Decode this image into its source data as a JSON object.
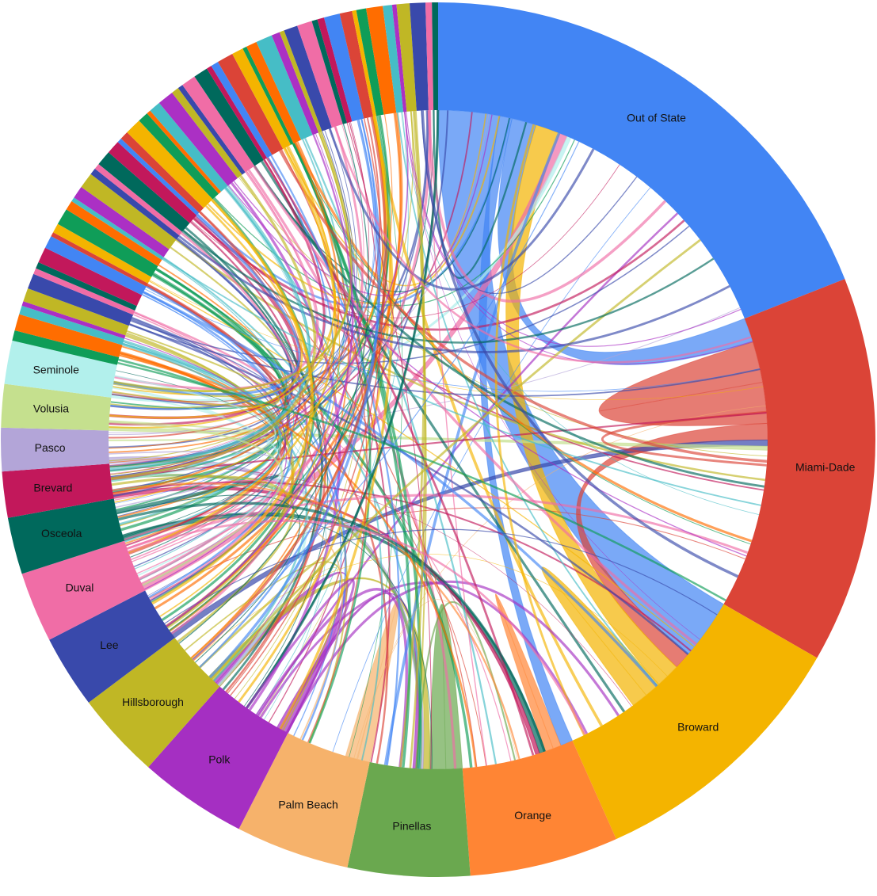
{
  "chart_data": {
    "type": "chord",
    "title": "",
    "segments": [
      {
        "name": "Out of State",
        "color": "#4285f4",
        "share": 0.19
      },
      {
        "name": "Miami-Dade",
        "color": "#db4437",
        "share": 0.143
      },
      {
        "name": "Broward",
        "color": "#f4b400",
        "share": 0.1
      },
      {
        "name": "Orange",
        "color": "#ff8534",
        "share": 0.055
      },
      {
        "name": "Pinellas",
        "color": "#6aa84f",
        "share": 0.045
      },
      {
        "name": "Palm Beach",
        "color": "#f6b26b",
        "share": 0.042
      },
      {
        "name": "Polk",
        "color": "#a52fc2",
        "share": 0.04
      },
      {
        "name": "Hillsborough",
        "color": "#c0b725",
        "share": 0.032
      },
      {
        "name": "Lee",
        "color": "#3949ab",
        "share": 0.027
      },
      {
        "name": "Duval",
        "color": "#f06da6",
        "share": 0.026
      },
      {
        "name": "Osceola",
        "color": "#00695c",
        "share": 0.021
      },
      {
        "name": "Brevard",
        "color": "#c2185b",
        "share": 0.017
      },
      {
        "name": "Pasco",
        "color": "#b3a5d8",
        "share": 0.016
      },
      {
        "name": "Volusia",
        "color": "#c5e08e",
        "share": 0.016
      },
      {
        "name": "Seminole",
        "color": "#b2f0ec",
        "share": 0.016
      }
    ],
    "small_segment_count": 56,
    "small_segment_share": 0.214,
    "small_segment_palette": [
      "#0f9d58",
      "#ff6d00",
      "#46bdc6",
      "#ab30c4",
      "#c0b725",
      "#3949ab",
      "#f06da6",
      "#00695c",
      "#c2185b",
      "#4285f4",
      "#db4437",
      "#f4b400"
    ],
    "flows": [
      {
        "from": "Out of State",
        "to": "Broward",
        "value": 0.03
      },
      {
        "from": "Out of State",
        "to": "Orange",
        "value": 0.006
      },
      {
        "from": "Out of State",
        "to": "Miami-Dade",
        "value": 0.012
      },
      {
        "from": "Miami-Dade",
        "to": "Miami-Dade",
        "value": 0.02
      },
      {
        "from": "Miami-Dade",
        "to": "Broward",
        "value": 0.008
      },
      {
        "from": "Broward",
        "to": "Out of State",
        "value": 0.012
      },
      {
        "from": "Broward",
        "to": "Broward",
        "value": 0.008
      },
      {
        "from": "Pinellas",
        "to": "Pinellas",
        "value": 0.008
      },
      {
        "from": "Palm Beach",
        "to": "Palm Beach",
        "value": 0.006
      },
      {
        "from": "Orange",
        "to": "Orange",
        "value": 0.004
      },
      {
        "from": "Polk",
        "to": "Hillsborough",
        "value": 0.004
      },
      {
        "from": "Duval",
        "to": "Out of State",
        "value": 0.004
      },
      {
        "from": "Lee",
        "to": "Miami-Dade",
        "value": 0.003
      },
      {
        "from": "Hillsborough",
        "to": "Pinellas",
        "value": 0.003
      },
      {
        "from": "Osceola",
        "to": "Orange",
        "value": 0.003
      },
      {
        "from": "Pasco",
        "to": "Pinellas",
        "value": 0.003
      },
      {
        "from": "Brevard",
        "to": "Orange",
        "value": 0.002
      },
      {
        "from": "Seminole",
        "to": "Out of State",
        "value": 0.002
      },
      {
        "from": "Volusia",
        "to": "Miami-Dade",
        "value": 0.002
      },
      {
        "from": "Polk",
        "to": "Pinellas",
        "value": 0.002
      }
    ]
  }
}
